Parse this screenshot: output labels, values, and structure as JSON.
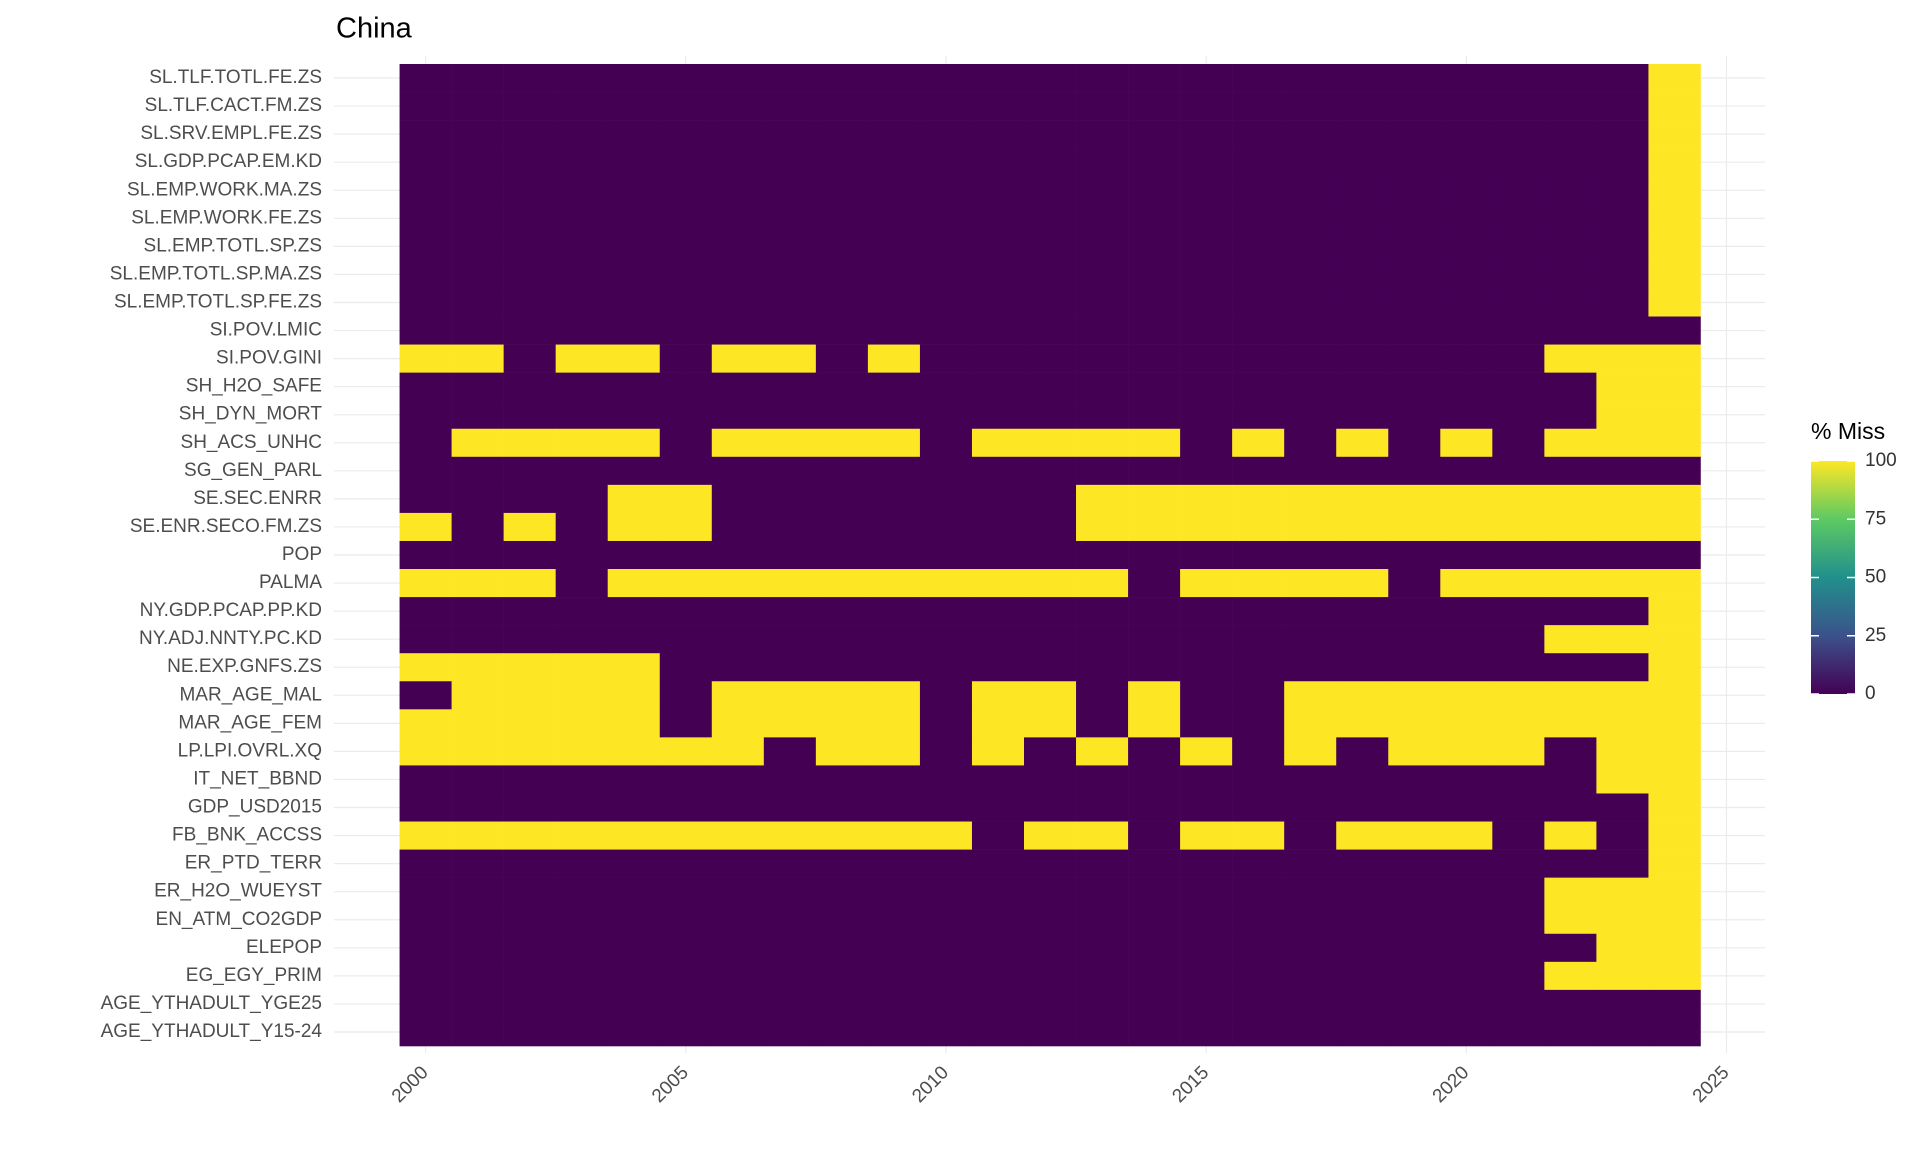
{
  "chart_data": {
    "type": "heatmap",
    "title": "China",
    "legend_title": "% Miss",
    "x": [
      2000,
      2001,
      2002,
      2003,
      2004,
      2005,
      2006,
      2007,
      2008,
      2009,
      2010,
      2011,
      2012,
      2013,
      2014,
      2015,
      2016,
      2017,
      2018,
      2019,
      2020,
      2021,
      2022,
      2023,
      2024
    ],
    "xlim": [
      1998.24,
      2025.74
    ],
    "xticks": [
      2000,
      2005,
      2010,
      2015,
      2020,
      2025
    ],
    "categories": [
      "SL.TLF.TOTL.FE.ZS",
      "SL.TLF.CACT.FM.ZS",
      "SL.SRV.EMPL.FE.ZS",
      "SL.GDP.PCAP.EM.KD",
      "SL.EMP.WORK.MA.ZS",
      "SL.EMP.WORK.FE.ZS",
      "SL.EMP.TOTL.SP.ZS",
      "SL.EMP.TOTL.SP.MA.ZS",
      "SL.EMP.TOTL.SP.FE.ZS",
      "SI.POV.LMIC",
      "SI.POV.GINI",
      "SH_H2O_SAFE",
      "SH_DYN_MORT",
      "SH_ACS_UNHC",
      "SG_GEN_PARL",
      "SE.SEC.ENRR",
      "SE.ENR.SECO.FM.ZS",
      "POP",
      "PALMA",
      "NY.GDP.PCAP.PP.KD",
      "NY.ADJ.NNTY.PC.KD",
      "NE.EXP.GNFS.ZS",
      "MAR_AGE_MAL",
      "MAR_AGE_FEM",
      "LP.LPI.OVRL.XQ",
      "IT_NET_BBND",
      "GDP_USD2015",
      "FB_BNK_ACCSS",
      "ER_PTD_TERR",
      "ER_H2O_WUEYST",
      "EN_ATM_CO2GDP",
      "ELEPOP",
      "EG_EGY_PRIM",
      "AGE_YTHADULT_YGE25",
      "AGE_YTHADULT_Y15-24"
    ],
    "values": [
      [
        0,
        0,
        0,
        0,
        0,
        0,
        0,
        0,
        0,
        0,
        0,
        0,
        0,
        0,
        0,
        0,
        0,
        0,
        0,
        0,
        0,
        0,
        0,
        0,
        100
      ],
      [
        0,
        0,
        0,
        0,
        0,
        0,
        0,
        0,
        0,
        0,
        0,
        0,
        0,
        0,
        0,
        0,
        0,
        0,
        0,
        0,
        0,
        0,
        0,
        0,
        100
      ],
      [
        0,
        0,
        0,
        0,
        0,
        0,
        0,
        0,
        0,
        0,
        0,
        0,
        0,
        0,
        0,
        0,
        0,
        0,
        0,
        0,
        0,
        0,
        0,
        0,
        100
      ],
      [
        0,
        0,
        0,
        0,
        0,
        0,
        0,
        0,
        0,
        0,
        0,
        0,
        0,
        0,
        0,
        0,
        0,
        0,
        0,
        0,
        0,
        0,
        0,
        0,
        100
      ],
      [
        0,
        0,
        0,
        0,
        0,
        0,
        0,
        0,
        0,
        0,
        0,
        0,
        0,
        0,
        0,
        0,
        0,
        0,
        0,
        0,
        0,
        0,
        0,
        0,
        100
      ],
      [
        0,
        0,
        0,
        0,
        0,
        0,
        0,
        0,
        0,
        0,
        0,
        0,
        0,
        0,
        0,
        0,
        0,
        0,
        0,
        0,
        0,
        0,
        0,
        0,
        100
      ],
      [
        0,
        0,
        0,
        0,
        0,
        0,
        0,
        0,
        0,
        0,
        0,
        0,
        0,
        0,
        0,
        0,
        0,
        0,
        0,
        0,
        0,
        0,
        0,
        0,
        100
      ],
      [
        0,
        0,
        0,
        0,
        0,
        0,
        0,
        0,
        0,
        0,
        0,
        0,
        0,
        0,
        0,
        0,
        0,
        0,
        0,
        0,
        0,
        0,
        0,
        0,
        100
      ],
      [
        0,
        0,
        0,
        0,
        0,
        0,
        0,
        0,
        0,
        0,
        0,
        0,
        0,
        0,
        0,
        0,
        0,
        0,
        0,
        0,
        0,
        0,
        0,
        0,
        100
      ],
      [
        0,
        0,
        0,
        0,
        0,
        0,
        0,
        0,
        0,
        0,
        0,
        0,
        0,
        0,
        0,
        0,
        0,
        0,
        0,
        0,
        0,
        0,
        0,
        0,
        0
      ],
      [
        100,
        100,
        0,
        100,
        100,
        0,
        100,
        100,
        0,
        100,
        0,
        0,
        0,
        0,
        0,
        0,
        0,
        0,
        0,
        0,
        0,
        0,
        100,
        100,
        100
      ],
      [
        0,
        0,
        0,
        0,
        0,
        0,
        0,
        0,
        0,
        0,
        0,
        0,
        0,
        0,
        0,
        0,
        0,
        0,
        0,
        0,
        0,
        0,
        0,
        100,
        100
      ],
      [
        0,
        0,
        0,
        0,
        0,
        0,
        0,
        0,
        0,
        0,
        0,
        0,
        0,
        0,
        0,
        0,
        0,
        0,
        0,
        0,
        0,
        0,
        0,
        100,
        100
      ],
      [
        0,
        100,
        100,
        100,
        100,
        0,
        100,
        100,
        100,
        100,
        0,
        100,
        100,
        100,
        100,
        0,
        100,
        0,
        100,
        0,
        100,
        0,
        100,
        100,
        100
      ],
      [
        0,
        0,
        0,
        0,
        0,
        0,
        0,
        0,
        0,
        0,
        0,
        0,
        0,
        0,
        0,
        0,
        0,
        0,
        0,
        0,
        0,
        0,
        0,
        0,
        0
      ],
      [
        0,
        0,
        0,
        0,
        100,
        100,
        0,
        0,
        0,
        0,
        0,
        0,
        0,
        100,
        100,
        100,
        100,
        100,
        100,
        100,
        100,
        100,
        100,
        100,
        100
      ],
      [
        100,
        0,
        100,
        0,
        100,
        100,
        0,
        0,
        0,
        0,
        0,
        0,
        0,
        100,
        100,
        100,
        100,
        100,
        100,
        100,
        100,
        100,
        100,
        100,
        100
      ],
      [
        0,
        0,
        0,
        0,
        0,
        0,
        0,
        0,
        0,
        0,
        0,
        0,
        0,
        0,
        0,
        0,
        0,
        0,
        0,
        0,
        0,
        0,
        0,
        0,
        0
      ],
      [
        100,
        100,
        100,
        0,
        100,
        100,
        100,
        100,
        100,
        100,
        100,
        100,
        100,
        100,
        0,
        100,
        100,
        100,
        100,
        0,
        100,
        100,
        100,
        100,
        100
      ],
      [
        0,
        0,
        0,
        0,
        0,
        0,
        0,
        0,
        0,
        0,
        0,
        0,
        0,
        0,
        0,
        0,
        0,
        0,
        0,
        0,
        0,
        0,
        0,
        0,
        100
      ],
      [
        0,
        0,
        0,
        0,
        0,
        0,
        0,
        0,
        0,
        0,
        0,
        0,
        0,
        0,
        0,
        0,
        0,
        0,
        0,
        0,
        0,
        0,
        100,
        100,
        100
      ],
      [
        100,
        100,
        100,
        100,
        100,
        0,
        0,
        0,
        0,
        0,
        0,
        0,
        0,
        0,
        0,
        0,
        0,
        0,
        0,
        0,
        0,
        0,
        0,
        0,
        100
      ],
      [
        0,
        100,
        100,
        100,
        100,
        0,
        100,
        100,
        100,
        100,
        0,
        100,
        100,
        0,
        100,
        0,
        0,
        100,
        100,
        100,
        100,
        100,
        100,
        100,
        100
      ],
      [
        100,
        100,
        100,
        100,
        100,
        0,
        100,
        100,
        100,
        100,
        0,
        100,
        100,
        0,
        100,
        0,
        0,
        100,
        100,
        100,
        100,
        100,
        100,
        100,
        100
      ],
      [
        100,
        100,
        100,
        100,
        100,
        100,
        100,
        0,
        100,
        100,
        0,
        100,
        0,
        100,
        0,
        100,
        0,
        100,
        0,
        100,
        100,
        100,
        0,
        100,
        100
      ],
      [
        0,
        0,
        0,
        0,
        0,
        0,
        0,
        0,
        0,
        0,
        0,
        0,
        0,
        0,
        0,
        0,
        0,
        0,
        0,
        0,
        0,
        0,
        0,
        100,
        100
      ],
      [
        0,
        0,
        0,
        0,
        0,
        0,
        0,
        0,
        0,
        0,
        0,
        0,
        0,
        0,
        0,
        0,
        0,
        0,
        0,
        0,
        0,
        0,
        0,
        0,
        100
      ],
      [
        100,
        100,
        100,
        100,
        100,
        100,
        100,
        100,
        100,
        100,
        100,
        0,
        100,
        100,
        0,
        100,
        100,
        0,
        100,
        100,
        100,
        0,
        100,
        0,
        100
      ],
      [
        0,
        0,
        0,
        0,
        0,
        0,
        0,
        0,
        0,
        0,
        0,
        0,
        0,
        0,
        0,
        0,
        0,
        0,
        0,
        0,
        0,
        0,
        0,
        0,
        100
      ],
      [
        0,
        0,
        0,
        0,
        0,
        0,
        0,
        0,
        0,
        0,
        0,
        0,
        0,
        0,
        0,
        0,
        0,
        0,
        0,
        0,
        0,
        0,
        100,
        100,
        100
      ],
      [
        0,
        0,
        0,
        0,
        0,
        0,
        0,
        0,
        0,
        0,
        0,
        0,
        0,
        0,
        0,
        0,
        0,
        0,
        0,
        0,
        0,
        0,
        100,
        100,
        100
      ],
      [
        0,
        0,
        0,
        0,
        0,
        0,
        0,
        0,
        0,
        0,
        0,
        0,
        0,
        0,
        0,
        0,
        0,
        0,
        0,
        0,
        0,
        0,
        0,
        100,
        100
      ],
      [
        0,
        0,
        0,
        0,
        0,
        0,
        0,
        0,
        0,
        0,
        0,
        0,
        0,
        0,
        0,
        0,
        0,
        0,
        0,
        0,
        0,
        0,
        100,
        100,
        100
      ],
      [
        0,
        0,
        0,
        0,
        0,
        0,
        0,
        0,
        0,
        0,
        0,
        0,
        0,
        0,
        0,
        0,
        0,
        0,
        0,
        0,
        0,
        0,
        0,
        0,
        0
      ],
      [
        0,
        0,
        0,
        0,
        0,
        0,
        0,
        0,
        0,
        0,
        0,
        0,
        0,
        0,
        0,
        0,
        0,
        0,
        0,
        0,
        0,
        0,
        0,
        0,
        0
      ]
    ],
    "zlim": [
      0,
      100
    ],
    "zticks": [
      0,
      25,
      50,
      75,
      100
    ],
    "colorscale": [
      "#440154",
      "#3b528b",
      "#21908c",
      "#5dc963",
      "#fde725"
    ],
    "grid": true
  }
}
